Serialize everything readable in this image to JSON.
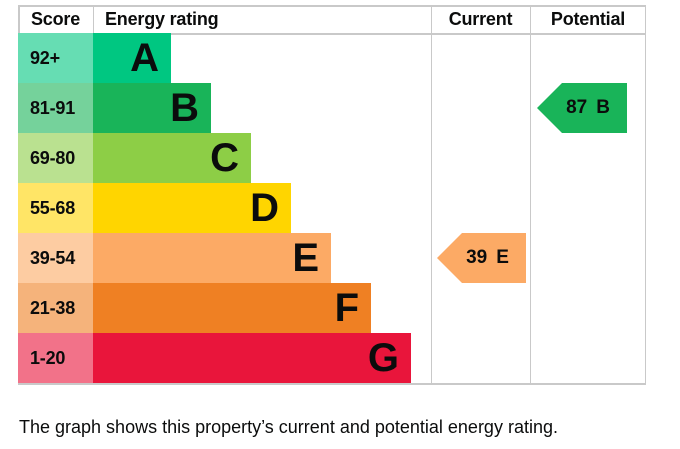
{
  "header": {
    "score": "Score",
    "rating": "Energy rating",
    "current": "Current",
    "potential": "Potential"
  },
  "bands": [
    {
      "score": "92+",
      "letter": "A",
      "color": "#00c781",
      "tint": "#66ddb3"
    },
    {
      "score": "81-91",
      "letter": "B",
      "color": "#19b459",
      "tint": "#75d29b"
    },
    {
      "score": "69-80",
      "letter": "C",
      "color": "#8dce46",
      "tint": "#bae190"
    },
    {
      "score": "55-68",
      "letter": "D",
      "color": "#ffd500",
      "tint": "#ffe566"
    },
    {
      "score": "39-54",
      "letter": "E",
      "color": "#fcaa65",
      "tint": "#fdcca2"
    },
    {
      "score": "21-38",
      "letter": "F",
      "color": "#ef8023",
      "tint": "#f5b37b"
    },
    {
      "score": "1-20",
      "letter": "G",
      "color": "#e9153b",
      "tint": "#f27289"
    }
  ],
  "markers": {
    "current": {
      "value": "39",
      "letter": "E",
      "band_index": 4,
      "color": "#fcaa65"
    },
    "potential": {
      "value": "87",
      "letter": "B",
      "band_index": 1,
      "color": "#19b459"
    }
  },
  "caption": "The graph shows this property’s current and potential energy rating.",
  "colors": {
    "background": "#ffffff",
    "grid_line": "#c9c9c9",
    "text": "#0b0c0c"
  },
  "chart_data": {
    "type": "bar",
    "title": "",
    "categories": [
      "A",
      "B",
      "C",
      "D",
      "E",
      "F",
      "G"
    ],
    "score_ranges": [
      "92+",
      "81-91",
      "69-80",
      "55-68",
      "39-54",
      "21-38",
      "1-20"
    ],
    "bar_step_relative_widths": [
      1,
      2,
      3,
      4,
      5,
      6,
      7
    ],
    "series": [
      {
        "name": "Current",
        "score": 39,
        "rating": "E"
      },
      {
        "name": "Potential",
        "score": 87,
        "rating": "B"
      }
    ],
    "legend_position": "column-headers",
    "grid": "column-separators-only",
    "caption": "The graph shows this property’s current and potential energy rating."
  }
}
